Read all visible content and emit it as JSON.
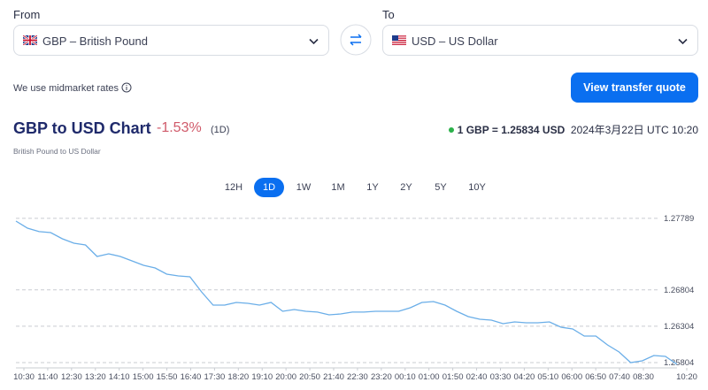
{
  "from": {
    "label": "From",
    "selected": "GBP – British Pound"
  },
  "to": {
    "label": "To",
    "selected": "USD – US Dollar"
  },
  "rates_note": "We use midmarket rates",
  "cta": "View transfer quote",
  "header": {
    "title": "GBP to USD Chart",
    "change": "-1.53%",
    "change_period": "(1D)",
    "subtitle": "British Pound to US Dollar",
    "rate": "1 GBP = 1.25834 USD",
    "timestamp": "2024年3月22日 UTC 10:20"
  },
  "periods": [
    "12H",
    "1D",
    "1W",
    "1M",
    "1Y",
    "2Y",
    "5Y",
    "10Y"
  ],
  "selected_period": 1,
  "chart_data": {
    "type": "line",
    "color": "#6aaee8",
    "grid": true,
    "xticks": [
      "10:30",
      "11:40",
      "12:30",
      "13:20",
      "14:10",
      "15:00",
      "15:50",
      "16:40",
      "17:30",
      "18:20",
      "19:10",
      "20:00",
      "20:50",
      "21:40",
      "22:30",
      "23:20",
      "00:10",
      "01:00",
      "01:50",
      "02:40",
      "03:30",
      "04:20",
      "05:10",
      "06:00",
      "06:50",
      "07:40",
      "08:30",
      "10:20"
    ],
    "values": [
      1.2775,
      1.27653,
      1.27605,
      1.27592,
      1.27507,
      1.27446,
      1.27422,
      1.27264,
      1.273,
      1.27264,
      1.27203,
      1.27142,
      1.27106,
      1.27021,
      1.26996,
      1.26984,
      1.26777,
      1.26595,
      1.26595,
      1.26631,
      1.26619,
      1.26595,
      1.26631,
      1.2651,
      1.26534,
      1.2651,
      1.26498,
      1.26461,
      1.26473,
      1.26498,
      1.26498,
      1.2651,
      1.2651,
      1.2651,
      1.26558,
      1.26631,
      1.26643,
      1.26595,
      1.2651,
      1.26437,
      1.264,
      1.26388,
      1.26339,
      1.26364,
      1.26352,
      1.26352,
      1.26364,
      1.26291,
      1.26266,
      1.26169,
      1.26169,
      1.26047,
      1.2595,
      1.25804,
      1.25828,
      1.25901,
      1.25889,
      1.2578
    ],
    "ylim": [
      1.25731,
      1.27872
    ],
    "yticks": [
      1.27789,
      1.26804,
      1.26304,
      1.25804
    ]
  }
}
